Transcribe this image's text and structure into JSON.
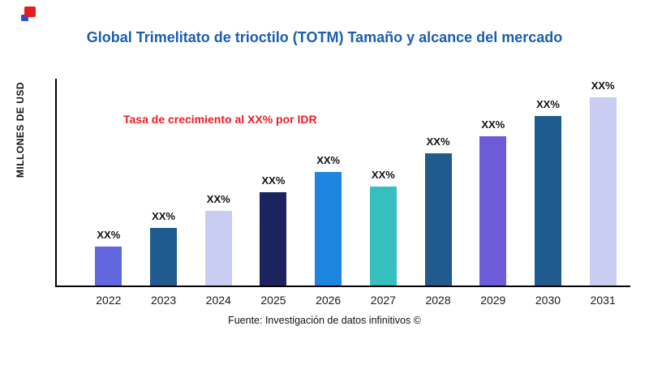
{
  "page": {
    "title": "Global Trimelitato de trioctilo (TOTM) Tamaño y alcance del mercado",
    "footer": "Fuente: Investigación de datos infinitivos ©",
    "title_color": "#1a5fb0",
    "annotation_color": "#ed1c24",
    "axis_color": "#000000"
  },
  "chart_data": {
    "type": "bar",
    "title": "Global Trimelitato de trioctilo (TOTM) Tamaño y alcance del mercado",
    "xlabel": "",
    "ylabel": "MILLONES DE USD",
    "annotation": "Tasa de crecimiento al XX% por IDR",
    "categories": [
      "2022",
      "2023",
      "2024",
      "2025",
      "2026",
      "2027",
      "2028",
      "2029",
      "2030",
      "2031"
    ],
    "values": [
      19,
      28,
      36,
      45,
      55,
      48,
      64,
      72,
      82,
      91
    ],
    "bar_labels": [
      "XX%",
      "XX%",
      "XX%",
      "XX%",
      "XX%",
      "XX%",
      "XX%",
      "XX%",
      "XX%",
      "XX%"
    ],
    "bar_colors": [
      "#6168de",
      "#1f5b8e",
      "#c8cdf1",
      "#1c2460",
      "#1e86e0",
      "#35c0bf",
      "#1f5b8e",
      "#6e5bd8",
      "#1f5b8e",
      "#c8cdf1"
    ],
    "ylim": [
      0,
      100
    ],
    "grid": false,
    "legend": "none"
  }
}
